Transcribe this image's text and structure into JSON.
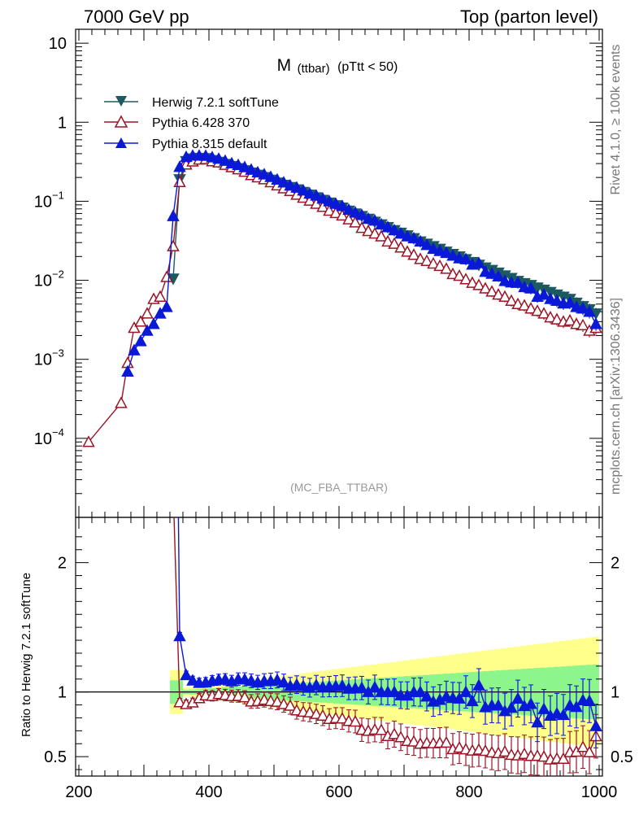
{
  "header": {
    "left": "7000 GeV pp",
    "right": "Top (parton level)"
  },
  "side": {
    "rivet": "Rivet 4.1.0, ≥ 100k events",
    "mcplots": "mcplots.cern.ch [arXiv:1306.3436]"
  },
  "plot": {
    "title_main": "M",
    "title_sub": "(ttbar)",
    "title_cut": "(pTtt < 50)",
    "analysis": "(MC_FBA_TTBAR)",
    "ratio_ylabel": "Ratio to Herwig 7.2.1 softTune"
  },
  "colors": {
    "herwig": "#1c5a60",
    "pythia6": "#9a1425",
    "pythia8": "#0a18d8",
    "band_inner": "#8cf58c",
    "band_outer": "#ffff8c"
  },
  "chart_data": {
    "type": "line",
    "xlim": [
      195,
      1005
    ],
    "ylim_log": [
      1e-05,
      15
    ],
    "ratio_ylim": [
      0.35,
      2.35
    ],
    "x_ticks": [
      200,
      400,
      600,
      800,
      1000
    ],
    "x_tick_labels": [
      "200",
      "400",
      "600",
      "800",
      "1000"
    ],
    "y_ticks": [
      {
        "v": 10,
        "base": "10",
        "exp": ""
      },
      {
        "v": 1,
        "base": "1",
        "exp": ""
      },
      {
        "v": 0.1,
        "base": "10",
        "exp": "−1"
      },
      {
        "v": 0.01,
        "base": "10",
        "exp": "−2"
      },
      {
        "v": 0.001,
        "base": "10",
        "exp": "−3"
      },
      {
        "v": 0.0001,
        "base": "10",
        "exp": "−4"
      }
    ],
    "ratio_ticks": [
      "0.5",
      "1",
      "2"
    ],
    "series": [
      {
        "name": "Herwig 7.2.1 softTune",
        "marker": "down",
        "x": [
          345,
          355,
          365,
          375,
          385,
          395,
          405,
          415,
          425,
          435,
          445,
          455,
          465,
          475,
          485,
          495,
          505,
          515,
          525,
          535,
          545,
          555,
          565,
          575,
          585,
          595,
          605,
          615,
          625,
          635,
          645,
          655,
          665,
          675,
          685,
          695,
          705,
          715,
          725,
          735,
          745,
          755,
          765,
          775,
          785,
          795,
          805,
          815,
          825,
          835,
          845,
          855,
          865,
          875,
          885,
          895,
          905,
          915,
          925,
          935,
          945,
          955,
          965,
          975,
          985,
          995
        ],
        "values": [
          0.0105,
          0.19,
          0.322,
          0.347,
          0.354,
          0.35,
          0.331,
          0.315,
          0.296,
          0.279,
          0.262,
          0.246,
          0.231,
          0.216,
          0.202,
          0.187,
          0.172,
          0.161,
          0.151,
          0.141,
          0.131,
          0.121,
          0.112,
          0.104,
          0.096,
          0.089,
          0.083,
          0.076,
          0.07,
          0.065,
          0.06,
          0.055,
          0.051,
          0.047,
          0.043,
          0.04,
          0.037,
          0.034,
          0.031,
          0.029,
          0.027,
          0.025,
          0.023,
          0.0215,
          0.02,
          0.0185,
          0.017,
          0.0157,
          0.0145,
          0.0135,
          0.0125,
          0.0115,
          0.0107,
          0.0098,
          0.0092,
          0.0087,
          0.0081,
          0.0076,
          0.0071,
          0.0066,
          0.0062,
          0.0058,
          0.0052,
          0.0047,
          0.0043,
          0.0038
        ]
      },
      {
        "name": "Pythia 6.428 370",
        "marker": "up-open",
        "x": [
          215,
          265,
          275,
          285,
          295,
          305,
          315,
          325,
          335,
          345,
          355,
          365,
          375,
          385,
          395,
          405,
          415,
          425,
          435,
          445,
          455,
          465,
          475,
          485,
          495,
          505,
          515,
          525,
          535,
          545,
          555,
          565,
          575,
          585,
          595,
          605,
          615,
          625,
          635,
          645,
          655,
          665,
          675,
          685,
          695,
          705,
          715,
          725,
          735,
          745,
          755,
          765,
          775,
          785,
          795,
          805,
          815,
          825,
          835,
          845,
          855,
          865,
          875,
          885,
          895,
          905,
          915,
          925,
          935,
          945,
          955,
          965,
          975,
          985,
          995
        ],
        "values": [
          9e-05,
          0.00028,
          0.0009,
          0.0025,
          0.003,
          0.0038,
          0.0058,
          0.0062,
          0.011,
          0.027,
          0.175,
          0.292,
          0.319,
          0.337,
          0.341,
          0.321,
          0.31,
          0.289,
          0.27,
          0.254,
          0.236,
          0.214,
          0.201,
          0.19,
          0.174,
          0.159,
          0.146,
          0.135,
          0.121,
          0.111,
          0.102,
          0.093,
          0.085,
          0.076,
          0.071,
          0.066,
          0.059,
          0.054,
          0.046,
          0.042,
          0.039,
          0.036,
          0.031,
          0.029,
          0.026,
          0.023,
          0.021,
          0.0186,
          0.0176,
          0.0163,
          0.0152,
          0.014,
          0.012,
          0.0114,
          0.0103,
          0.0093,
          0.0087,
          0.0079,
          0.0072,
          0.0066,
          0.0062,
          0.0055,
          0.005,
          0.0048,
          0.0044,
          0.0041,
          0.0038,
          0.0034,
          0.0032,
          0.003,
          0.0031,
          0.0028,
          0.0027,
          0.0023,
          0.0025
        ]
      },
      {
        "name": "Pythia 8.315 default",
        "marker": "up",
        "x": [
          275,
          285,
          295,
          305,
          315,
          325,
          335,
          345,
          355,
          365,
          375,
          385,
          395,
          405,
          415,
          425,
          435,
          445,
          455,
          465,
          475,
          485,
          495,
          505,
          515,
          525,
          535,
          545,
          555,
          565,
          575,
          585,
          595,
          605,
          615,
          625,
          635,
          645,
          655,
          665,
          675,
          685,
          695,
          705,
          715,
          725,
          735,
          745,
          755,
          765,
          775,
          785,
          795,
          805,
          815,
          825,
          835,
          845,
          855,
          865,
          875,
          885,
          895,
          905,
          915,
          925,
          935,
          945,
          955,
          965,
          975,
          985,
          995
        ],
        "values": [
          0.0007,
          0.0013,
          0.0017,
          0.0023,
          0.0028,
          0.0038,
          0.0046,
          0.065,
          0.272,
          0.364,
          0.378,
          0.379,
          0.376,
          0.36,
          0.345,
          0.325,
          0.302,
          0.288,
          0.27,
          0.251,
          0.232,
          0.219,
          0.203,
          0.188,
          0.173,
          0.158,
          0.149,
          0.137,
          0.125,
          0.118,
          0.108,
          0.1,
          0.093,
          0.087,
          0.078,
          0.072,
          0.067,
          0.06,
          0.057,
          0.051,
          0.047,
          0.043,
          0.039,
          0.036,
          0.034,
          0.031,
          0.028,
          0.025,
          0.0235,
          0.0222,
          0.0205,
          0.019,
          0.0185,
          0.0158,
          0.0165,
          0.0128,
          0.0121,
          0.0112,
          0.0098,
          0.0094,
          0.0093,
          0.0082,
          0.0079,
          0.0062,
          0.0066,
          0.0058,
          0.0055,
          0.0051,
          0.0052,
          0.0046,
          0.0044,
          0.004,
          0.0028
        ]
      }
    ]
  }
}
